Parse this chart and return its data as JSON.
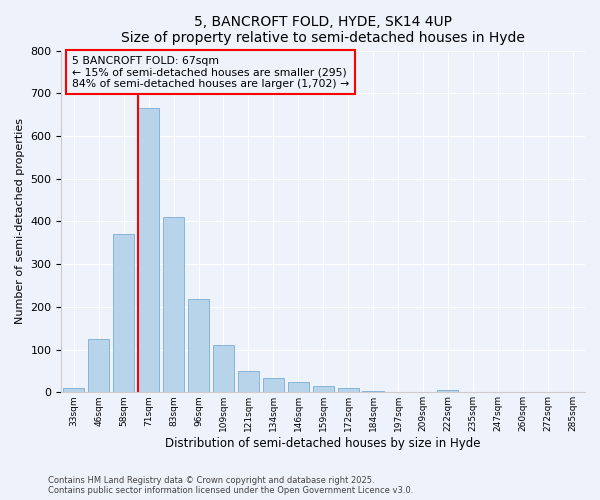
{
  "title": "5, BANCROFT FOLD, HYDE, SK14 4UP",
  "subtitle": "Size of property relative to semi-detached houses in Hyde",
  "xlabel": "Distribution of semi-detached houses by size in Hyde",
  "ylabel": "Number of semi-detached properties",
  "categories": [
    "33sqm",
    "46sqm",
    "58sqm",
    "71sqm",
    "83sqm",
    "96sqm",
    "109sqm",
    "121sqm",
    "134sqm",
    "146sqm",
    "159sqm",
    "172sqm",
    "184sqm",
    "197sqm",
    "209sqm",
    "222sqm",
    "235sqm",
    "247sqm",
    "260sqm",
    "272sqm",
    "285sqm"
  ],
  "values": [
    10,
    125,
    370,
    665,
    410,
    218,
    110,
    50,
    33,
    23,
    14,
    10,
    4,
    0,
    0,
    5,
    0,
    0,
    0,
    0,
    0
  ],
  "bar_color": "#b8d4ea",
  "bar_edge_color": "#7aadd4",
  "annotation_title": "5 BANCROFT FOLD: 67sqm",
  "annotation_line1": "← 15% of semi-detached houses are smaller (295)",
  "annotation_line2": "84% of semi-detached houses are larger (1,702) →",
  "ylim": [
    0,
    800
  ],
  "yticks": [
    0,
    100,
    200,
    300,
    400,
    500,
    600,
    700,
    800
  ],
  "footer1": "Contains HM Land Registry data © Crown copyright and database right 2025.",
  "footer2": "Contains public sector information licensed under the Open Government Licence v3.0.",
  "background_color": "#eef2fb",
  "grid_color": "#ffffff",
  "red_line_index": 2.575
}
